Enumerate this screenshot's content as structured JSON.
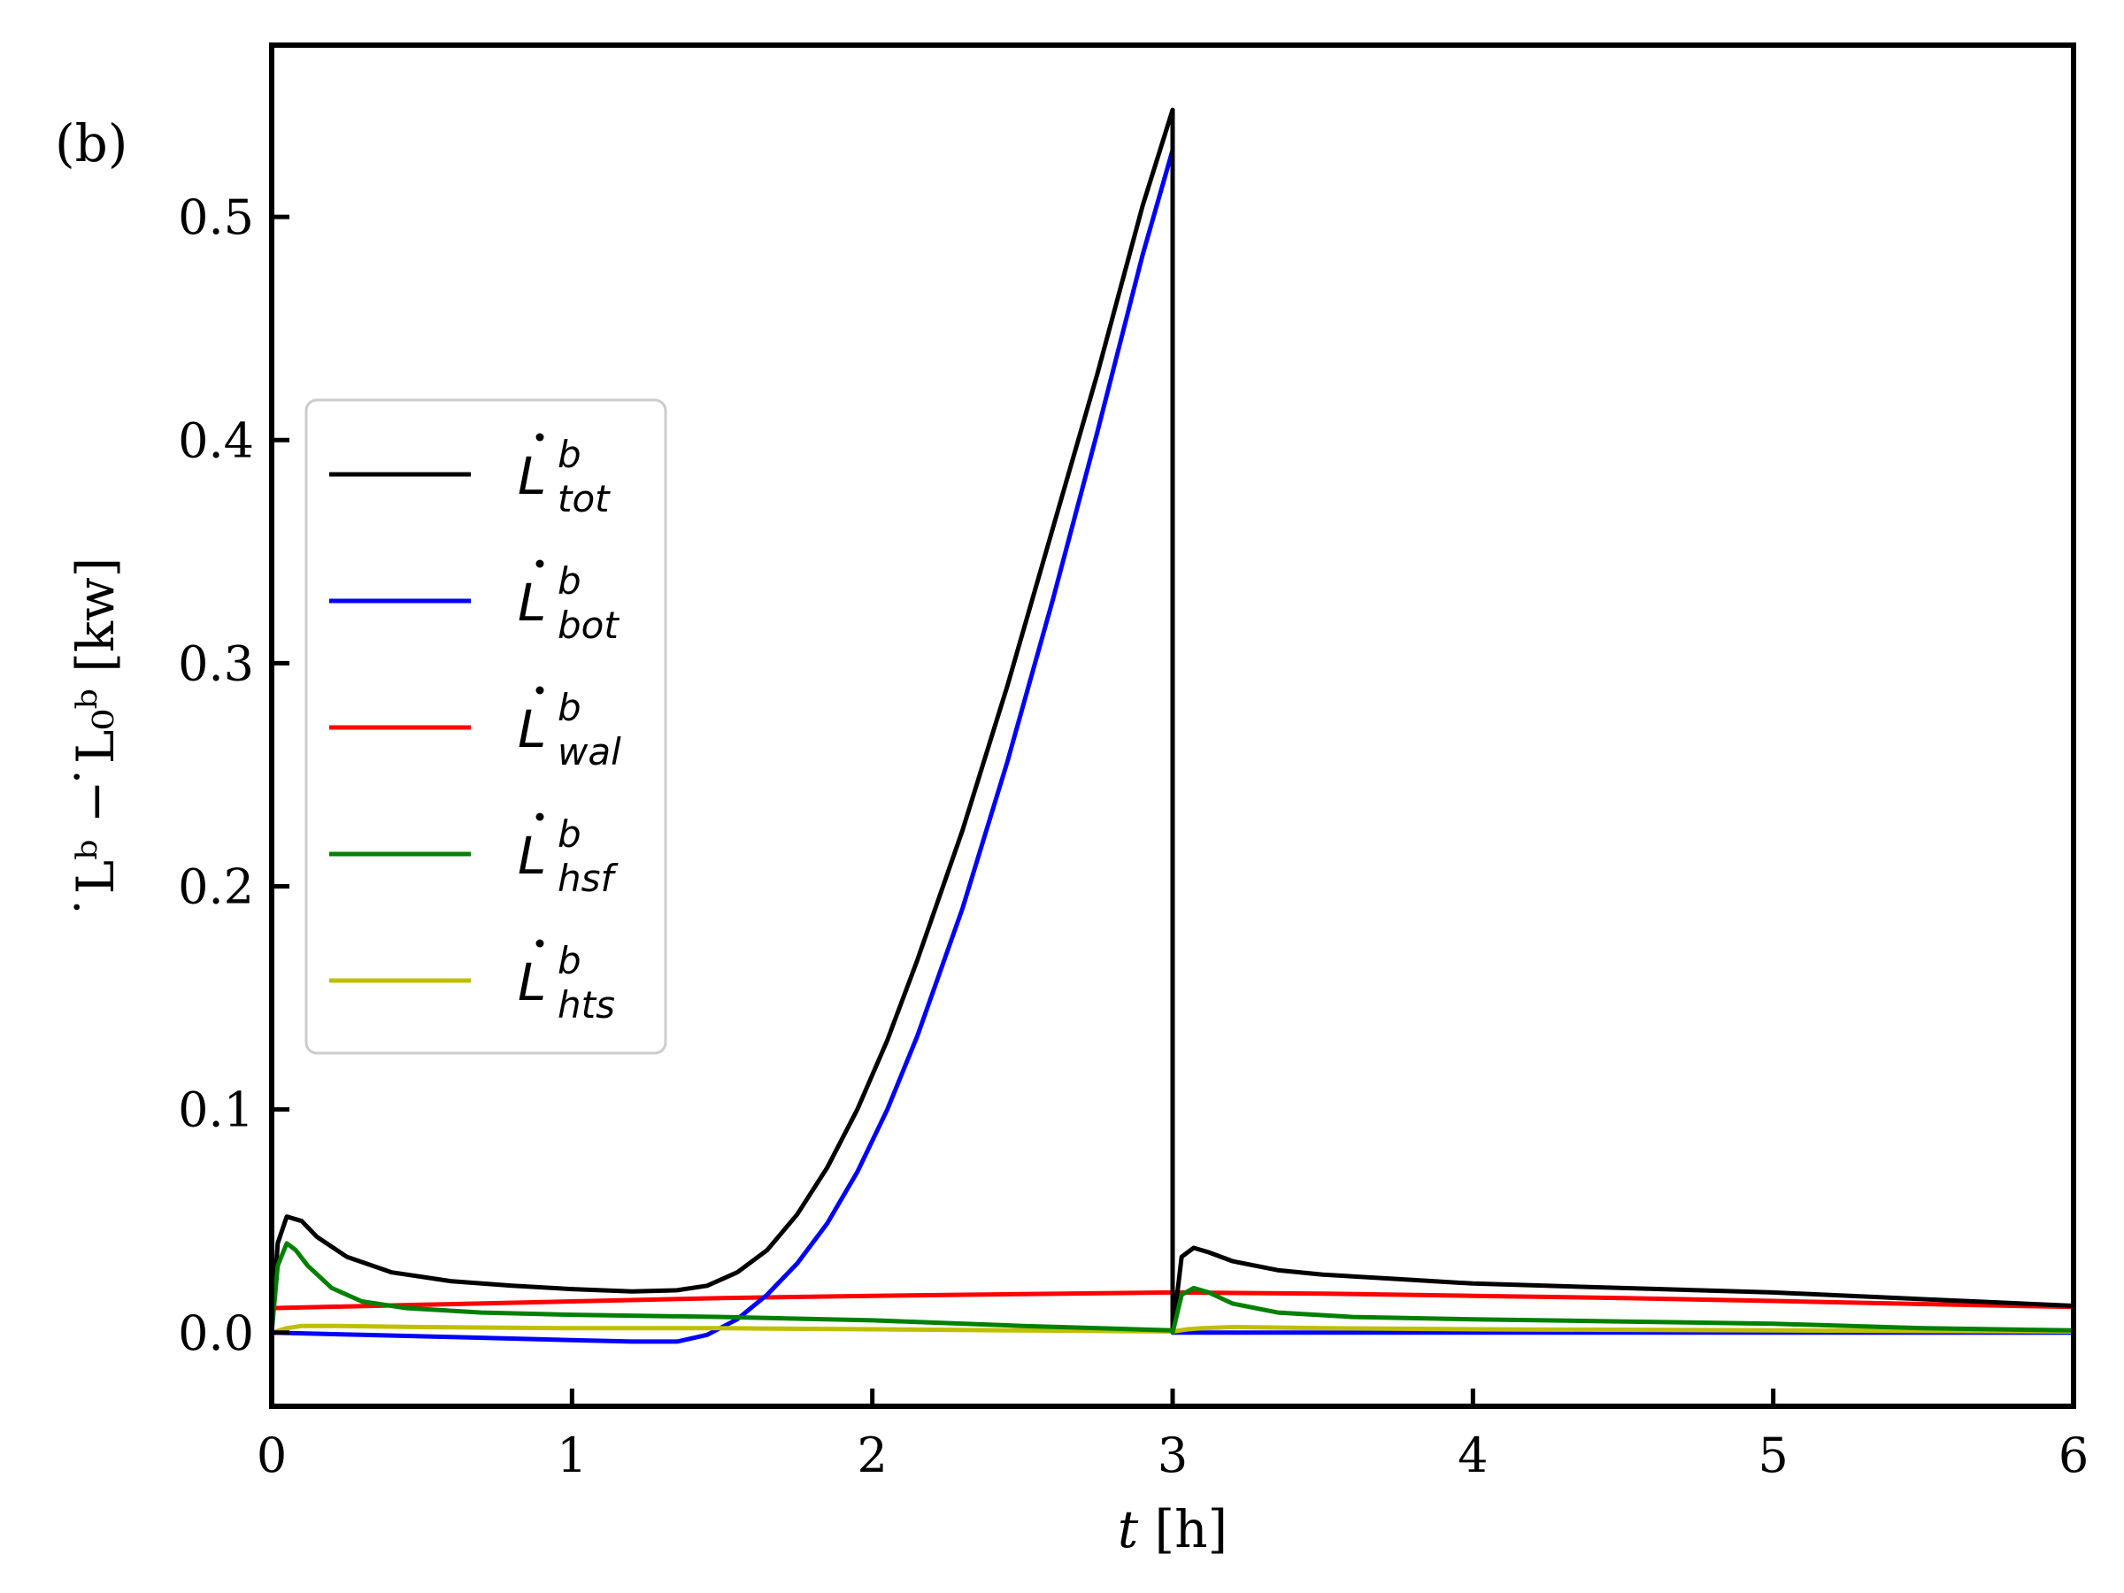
{
  "panel_label": "(b)",
  "colors": {
    "tot": "#000000",
    "bot": "#0000ff",
    "wal": "#ff0000",
    "hsf": "#008000",
    "hts": "#bfbf00"
  },
  "chart_data": {
    "type": "line",
    "xlabel": {
      "italic": "t",
      "rest": " [h]"
    },
    "ylabel": "̇Lᵇ − ̇L₀ᵇ [kw]",
    "xlim": [
      0,
      6
    ],
    "ylim": [
      -0.033,
      0.577
    ],
    "xticks": [
      0,
      1,
      2,
      3,
      4,
      5,
      6
    ],
    "xtick_labels": [
      "0",
      "1",
      "2",
      "3",
      "4",
      "5",
      "6"
    ],
    "yticks": [
      0.0,
      0.1,
      0.2,
      0.3,
      0.4,
      0.5
    ],
    "ytick_labels": [
      "0.0",
      "0.1",
      "0.2",
      "0.3",
      "0.4",
      "0.5"
    ],
    "legend_position": "center-left",
    "series": [
      {
        "key": "tot",
        "name": "L̇ b tot",
        "legend_base": "L",
        "legend_sup": "b",
        "legend_sub": "tot",
        "x": [
          0,
          0.02,
          0.05,
          0.1,
          0.15,
          0.25,
          0.4,
          0.6,
          0.8,
          1.0,
          1.2,
          1.35,
          1.45,
          1.55,
          1.65,
          1.75,
          1.85,
          1.95,
          2.05,
          2.15,
          2.3,
          2.45,
          2.6,
          2.75,
          2.9,
          3.0,
          3.0,
          3.03,
          3.07,
          3.12,
          3.2,
          3.35,
          3.5,
          3.75,
          4.0,
          4.5,
          5.0,
          5.5,
          6.0
        ],
        "y": [
          0.0,
          0.04,
          0.052,
          0.05,
          0.043,
          0.034,
          0.027,
          0.023,
          0.021,
          0.0195,
          0.0185,
          0.019,
          0.021,
          0.027,
          0.037,
          0.053,
          0.074,
          0.1,
          0.131,
          0.167,
          0.225,
          0.29,
          0.36,
          0.43,
          0.505,
          0.548,
          0.0,
          0.034,
          0.038,
          0.036,
          0.032,
          0.028,
          0.026,
          0.024,
          0.022,
          0.02,
          0.018,
          0.015,
          0.012
        ]
      },
      {
        "key": "bot",
        "name": "L̇ b bot",
        "legend_base": "L",
        "legend_sup": "b",
        "legend_sub": "bot",
        "x": [
          0,
          0.3,
          0.6,
          0.9,
          1.2,
          1.35,
          1.45,
          1.55,
          1.65,
          1.75,
          1.85,
          1.95,
          2.05,
          2.15,
          2.3,
          2.45,
          2.6,
          2.75,
          2.9,
          3.0,
          3.0,
          3.1,
          3.5,
          4.0,
          5.0,
          6.0
        ],
        "y": [
          0.0,
          -0.001,
          -0.002,
          -0.003,
          -0.004,
          -0.004,
          -0.001,
          0.006,
          0.017,
          0.031,
          0.049,
          0.072,
          0.1,
          0.133,
          0.19,
          0.256,
          0.328,
          0.404,
          0.483,
          0.53,
          0.0,
          0.0,
          0.0,
          0.0,
          0.0,
          0.0
        ],
        "vertical_drop_at": 3.0
      },
      {
        "key": "wal",
        "name": "L̇ b wal",
        "legend_base": "L",
        "legend_sup": "b",
        "legend_sub": "wal",
        "x": [
          0,
          0.5,
          1.0,
          1.5,
          2.0,
          2.5,
          3.0,
          3.5,
          4.0,
          4.5,
          5.0,
          5.5,
          6.0
        ],
        "y": [
          0.011,
          0.0125,
          0.014,
          0.0155,
          0.0165,
          0.0173,
          0.018,
          0.0175,
          0.0165,
          0.0155,
          0.0142,
          0.0128,
          0.0115
        ]
      },
      {
        "key": "hsf",
        "name": "L̇ b hsf",
        "legend_base": "L",
        "legend_sup": "b",
        "legend_sub": "hsf",
        "x": [
          0,
          0.02,
          0.05,
          0.08,
          0.12,
          0.2,
          0.3,
          0.45,
          0.7,
          1.0,
          1.5,
          2.0,
          2.5,
          3.0,
          3.0,
          3.03,
          3.07,
          3.12,
          3.2,
          3.35,
          3.6,
          4.0,
          4.5,
          5.0,
          5.5,
          6.0
        ],
        "y": [
          0.0,
          0.03,
          0.04,
          0.037,
          0.03,
          0.02,
          0.014,
          0.011,
          0.009,
          0.008,
          0.007,
          0.0055,
          0.003,
          0.001,
          0.0,
          0.017,
          0.02,
          0.018,
          0.013,
          0.009,
          0.007,
          0.006,
          0.005,
          0.004,
          0.002,
          0.001
        ]
      },
      {
        "key": "hts",
        "name": "L̇ b hts",
        "legend_base": "L",
        "legend_sup": "b",
        "legend_sub": "hts",
        "x": [
          0,
          0.05,
          0.1,
          0.2,
          0.5,
          1.0,
          1.5,
          2.0,
          2.5,
          3.0,
          3.05,
          3.1,
          3.2,
          3.5,
          4.0,
          5.0,
          6.0
        ],
        "y": [
          0.0,
          0.002,
          0.003,
          0.003,
          0.0025,
          0.002,
          0.002,
          0.0015,
          0.001,
          0.0005,
          0.0015,
          0.002,
          0.0025,
          0.002,
          0.0015,
          0.001,
          0.0005
        ]
      }
    ]
  }
}
